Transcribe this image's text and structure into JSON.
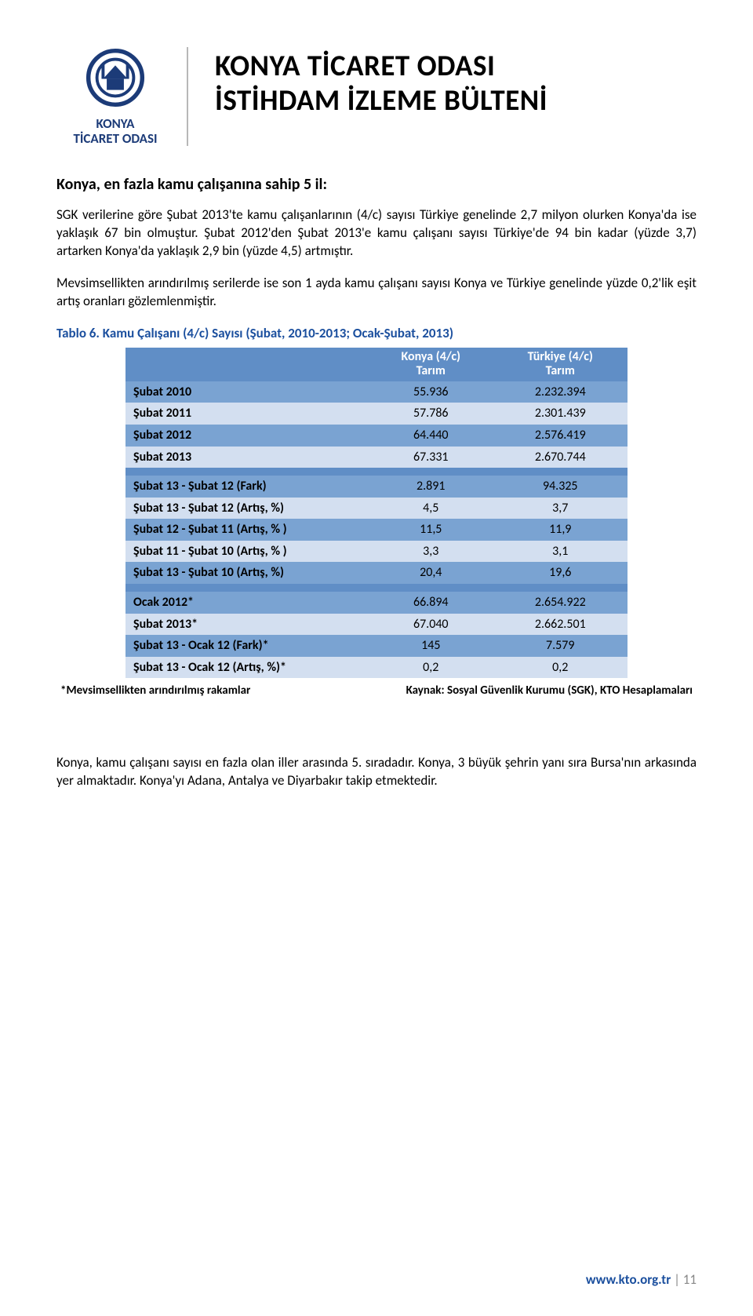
{
  "logo": {
    "org_line1": "KONYA",
    "org_line2": "TİCARET ODASI",
    "color": "#1c3b78"
  },
  "title": {
    "line1": "KONYA TİCARET ODASI",
    "line2": "İSTİHDAM İZLEME BÜLTENİ"
  },
  "section_heading": "Konya, en fazla kamu çalışanına sahip 5 il:",
  "para1": "SGK verilerine göre Şubat 2013'te kamu çalışanlarının (4/c) sayısı Türkiye genelinde 2,7 milyon olurken Konya'da ise yaklaşık 67 bin olmuştur. Şubat 2012'den Şubat 2013'e kamu çalışanı sayısı Türkiye'de 94 bin kadar (yüzde 3,7) artarken Konya'da yaklaşık 2,9 bin (yüzde 4,5) artmıştır.",
  "para2": "Mevsimsellikten arındırılmış serilerde ise son 1 ayda kamu çalışanı sayısı Konya ve Türkiye genelinde yüzde 0,2'lik eşit artış oranları gözlemlenmiştir.",
  "table_caption": "Tablo 6. Kamu Çalışanı (4/c) Sayısı (Şubat, 2010-2013; Ocak-Şubat, 2013)",
  "table": {
    "col1_header_l1": "Konya (4/c)",
    "col1_header_l2": "Tarım",
    "col2_header_l1": "Türkiye (4/c)",
    "col2_header_l2": "Tarım",
    "sections": [
      [
        {
          "label": "Şubat 2010",
          "c1": "55.936",
          "c2": "2.232.394"
        },
        {
          "label": "Şubat 2011",
          "c1": "57.786",
          "c2": "2.301.439"
        },
        {
          "label": "Şubat 2012",
          "c1": "64.440",
          "c2": "2.576.419"
        },
        {
          "label": "Şubat 2013",
          "c1": "67.331",
          "c2": "2.670.744"
        }
      ],
      [
        {
          "label": "Şubat 13 - Şubat 12 (Fark)",
          "c1": "2.891",
          "c2": "94.325"
        },
        {
          "label": "Şubat 13 - Şubat 12 (Artış, %)",
          "c1": "4,5",
          "c2": "3,7"
        },
        {
          "label": "Şubat 12 - Şubat 11 (Artış, % )",
          "c1": "11,5",
          "c2": "11,9"
        },
        {
          "label": "Şubat 11 - Şubat 10 (Artış, % )",
          "c1": "3,3",
          "c2": "3,1"
        },
        {
          "label": "Şubat 13 - Şubat 10 (Artış, %)",
          "c1": "20,4",
          "c2": "19,6"
        }
      ],
      [
        {
          "label": "Ocak 2012*",
          "c1": "66.894",
          "c2": "2.654.922"
        },
        {
          "label": "Şubat 2013*",
          "c1": "67.040",
          "c2": "2.662.501"
        },
        {
          "label": "Şubat 13 - Ocak 12 (Fark)*",
          "c1": "145",
          "c2": "7.579"
        },
        {
          "label": "Şubat 13 - Ocak 12 (Artış, %)*",
          "c1": "0,2",
          "c2": "0,2"
        }
      ]
    ]
  },
  "note_left": "*Mevsimsellikten arındırılmış rakamlar",
  "note_right": "Kaynak: Sosyal Güvenlik Kurumu (SGK), KTO Hesaplamaları",
  "para3": "Konya, kamu çalışanı sayısı en fazla olan iller arasında 5. sıradadır. Konya, 3 büyük şehrin yanı sıra Bursa'nın arkasında yer almaktadır. Konya'yı Adana, Antalya ve Diyarbakır takip etmektedir.",
  "footer": {
    "url": "www.kto.org.tr",
    "sep": " | ",
    "page": "11"
  }
}
